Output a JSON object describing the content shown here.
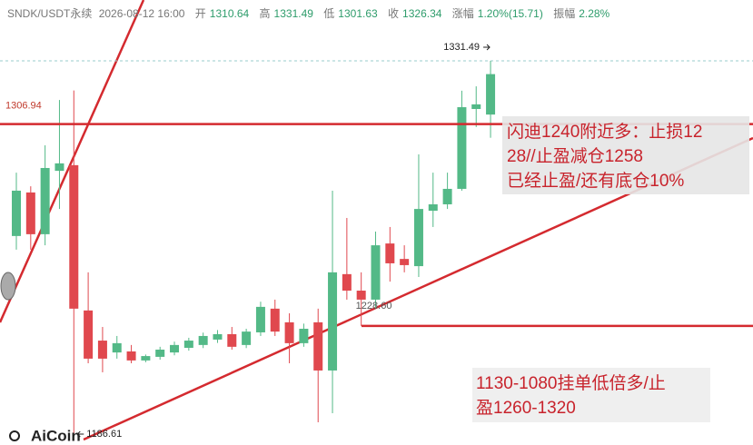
{
  "chart_data": {
    "type": "candlestick",
    "symbol": "SNDK/USDT永续",
    "time": "2026-08-12 16:00",
    "field_labels": [
      "开",
      "高",
      "低",
      "收",
      "涨幅",
      "振幅"
    ],
    "change": "1.20%(15.71)",
    "amplitude": "2.28%",
    "open": [
      1263.5,
      1280.4,
      1264.2,
      1288.8,
      1291.0,
      1234.6,
      1222.9,
      1218.3,
      1218.7,
      1215.2,
      1216.6,
      1218.3,
      1220.1,
      1221.2,
      1223.3,
      1225.4,
      1221.2,
      1226.1,
      1235.3,
      1230.0,
      1221.9,
      1230.0,
      1211.3,
      1248.7,
      1242.3,
      1238.8,
      1260.6,
      1254.6,
      1251.8,
      1273.3,
      1275.8,
      1281.8,
      1312.8,
      1310.64
    ],
    "high": [
      1288.1,
      1282.8,
      1298.7,
      1316.3,
      1320.0,
      1249.4,
      1228.2,
      1224.7,
      1221.2,
      1217.5,
      1220.5,
      1222.5,
      1224.0,
      1226.0,
      1227.0,
      1228.2,
      1227.5,
      1238.0,
      1238.8,
      1233.5,
      1229.5,
      1235.3,
      1281.1,
      1270.5,
      1249.4,
      1265.2,
      1267.0,
      1259.9,
      1295.2,
      1288.1,
      1288.1,
      1319.9,
      1321.6,
      1331.49
    ],
    "low": [
      1258.2,
      1258.2,
      1259.9,
      1274.0,
      1186.61,
      1214.1,
      1210.6,
      1215.9,
      1214.1,
      1214.5,
      1215.5,
      1217.2,
      1219.0,
      1220.0,
      1222.0,
      1219.4,
      1220.0,
      1224.7,
      1224.7,
      1214.1,
      1220.5,
      1191.2,
      1194.7,
      1238.8,
      1228.6,
      1235.3,
      1245.8,
      1249.4,
      1247.6,
      1267.0,
      1274.0,
      1281.1,
      1305.8,
      1301.63
    ],
    "close": [
      1281.1,
      1264.2,
      1289.9,
      1291.7,
      1235.3,
      1215.9,
      1215.9,
      1221.9,
      1215.2,
      1216.9,
      1219.4,
      1221.2,
      1222.9,
      1224.7,
      1225.4,
      1220.5,
      1226.4,
      1236.0,
      1226.4,
      1221.9,
      1227.5,
      1211.3,
      1249.4,
      1242.3,
      1238.8,
      1259.9,
      1252.9,
      1252.2,
      1274.0,
      1275.8,
      1281.8,
      1313.5,
      1314.6,
      1326.34
    ],
    "up_color": "#53b987",
    "down_color": "#e0484e",
    "level_lines": [
      1306.94,
      1228.6
    ],
    "extreme_labels": [
      1331.49,
      {
        "value": 1228.6,
        "label": "1228.60"
      },
      1186.61
    ],
    "notes": [
      [
        "闪迪1240附近多：止损12",
        "28//止盈减仓1258",
        "已经止盈/还有底仓10%"
      ],
      [
        "1130-1080挂单低倍多/止",
        "盈1260-1320"
      ]
    ],
    "logo": "AiCoin"
  }
}
